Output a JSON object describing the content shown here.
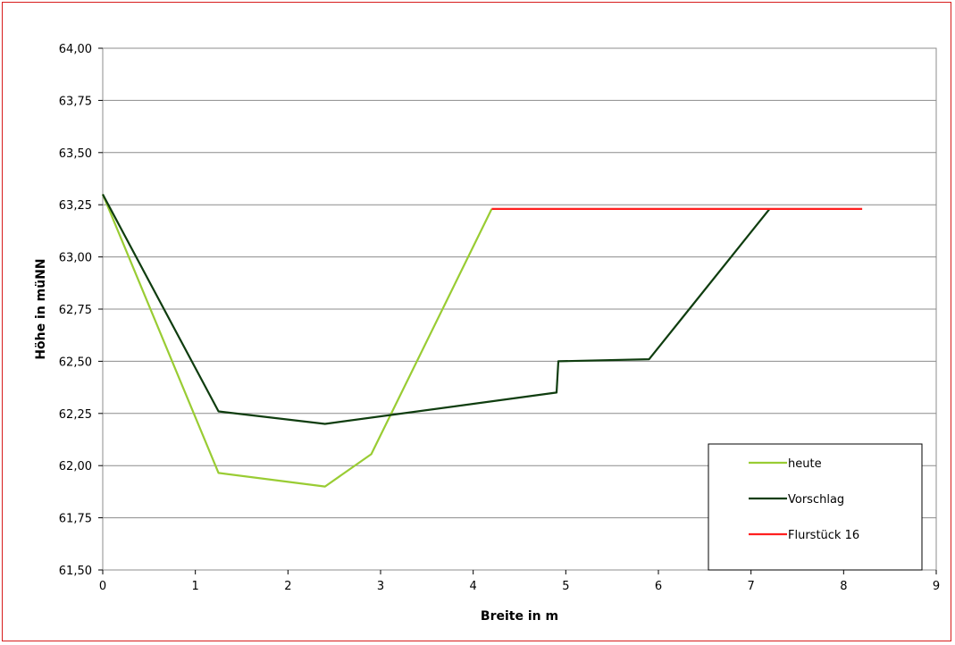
{
  "chart_data": {
    "type": "line",
    "title": "",
    "xlabel": "Breite in m",
    "ylabel": "Höhe in müNN",
    "xlim": [
      0,
      9
    ],
    "ylim": [
      61.5,
      64.0
    ],
    "xticks": [
      "0",
      "1",
      "2",
      "3",
      "4",
      "5",
      "6",
      "7",
      "8",
      "9"
    ],
    "yticks": [
      "61,50",
      "61,75",
      "62,00",
      "62,25",
      "62,50",
      "62,75",
      "63,00",
      "63,25",
      "63,50",
      "63,75",
      "64,00"
    ],
    "grid": "horizontal",
    "legend_position": "bottom-right",
    "series": [
      {
        "name": "heute",
        "color": "#99cc33",
        "points": [
          [
            0,
            63.3
          ],
          [
            1.25,
            61.965
          ],
          [
            2.4,
            61.9
          ],
          [
            2.9,
            62.055
          ],
          [
            4.2,
            63.23
          ]
        ]
      },
      {
        "name": "Vorschlag",
        "color": "#0f3d0f",
        "points": [
          [
            0,
            63.3
          ],
          [
            1.25,
            62.26
          ],
          [
            2.4,
            62.2
          ],
          [
            4.9,
            62.35
          ],
          [
            4.92,
            62.5
          ],
          [
            5.9,
            62.51
          ],
          [
            7.2,
            63.23
          ]
        ]
      },
      {
        "name": "Flurstück 16",
        "color": "#ff1f1f",
        "points": [
          [
            4.2,
            63.23
          ],
          [
            8.2,
            63.23
          ]
        ]
      }
    ]
  }
}
